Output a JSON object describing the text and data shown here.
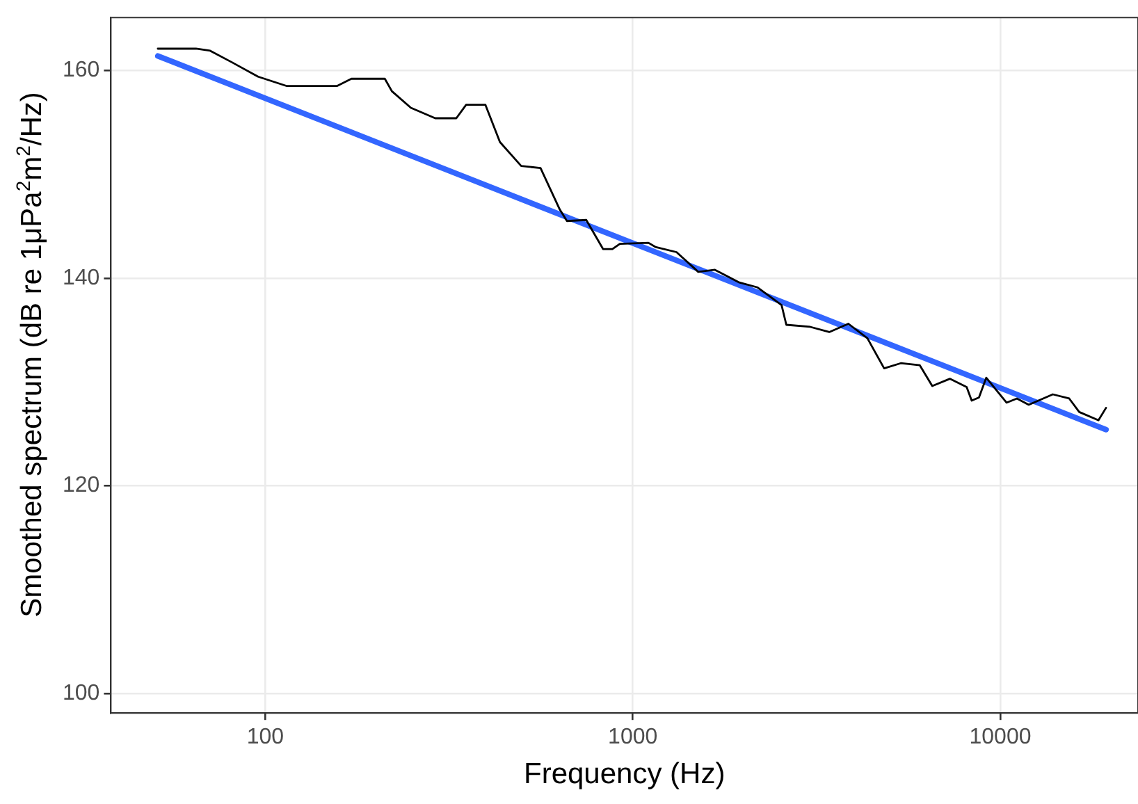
{
  "chart_data": {
    "type": "line",
    "xlabel": "Frequency (Hz)",
    "ylabel": "Smoothed spectrum (dB re 1μPa$^{2}$m$^{2}$/Hz)",
    "log": "x",
    "xlim": [
      38,
      23700
    ],
    "xticks": [
      100,
      1000,
      10000
    ],
    "ylim": [
      98.1,
      165.1
    ],
    "yticks": [
      100,
      120,
      140,
      160
    ],
    "grid": true,
    "legend": false,
    "marker": "none",
    "line_style": "solid",
    "series": [
      {
        "color": "#000000",
        "x": [
          51,
          64.8,
          70.8,
          81,
          95.6,
          114.5,
          156.6,
          171.5,
          211.5,
          221,
          249,
          290,
          331,
          352,
          397,
          435,
          497,
          561,
          633,
          662,
          747,
          830,
          880,
          922,
          1103,
          1152,
          1315,
          1507,
          1673,
          1942,
          2186,
          2540,
          2617,
          3040,
          3425,
          3860,
          4350,
          4830,
          5360,
          6040,
          6530,
          7290,
          8100,
          8360,
          8750,
          9160,
          10400,
          11100,
          11950,
          13900,
          15400,
          16400,
          18500,
          19400
        ],
        "values": [
          162.1,
          162.1,
          161.9,
          160.8,
          159.4,
          158.5,
          158.5,
          159.2,
          159.2,
          158.0,
          156.4,
          155.4,
          155.4,
          156.7,
          156.7,
          153.1,
          150.8,
          150.6,
          146.6,
          145.5,
          145.6,
          142.8,
          142.8,
          143.3,
          143.4,
          143.0,
          142.5,
          140.6,
          140.8,
          139.6,
          139.1,
          137.4,
          135.5,
          135.3,
          134.8,
          135.6,
          134.2,
          131.3,
          131.8,
          131.6,
          129.6,
          130.3,
          129.5,
          128.2,
          128.5,
          130.4,
          128.0,
          128.4,
          127.8,
          128.8,
          128.4,
          127.1,
          126.3,
          127.5
        ]
      },
      {
        "type": "line",
        "color": "#3366ff",
        "x": [
          51,
          19400
        ],
        "values": [
          161.4,
          125.4
        ]
      }
    ]
  }
}
